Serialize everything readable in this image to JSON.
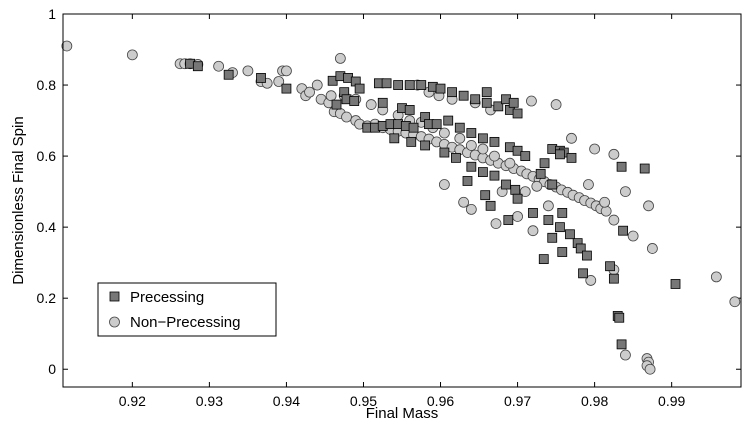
{
  "chart_data": {
    "type": "scatter",
    "title": "",
    "xlabel": "Final Mass",
    "ylabel": "Dimensionless Final Spin",
    "xlim": [
      0.911,
      0.999
    ],
    "ylim": [
      -0.05,
      1.0
    ],
    "xticks": [
      0.92,
      0.93,
      0.94,
      0.95,
      0.96,
      0.97,
      0.98,
      0.99
    ],
    "yticks": [
      0,
      0.2,
      0.4,
      0.6,
      0.8,
      1
    ],
    "xtick_labels": [
      "0.92",
      "0.93",
      "0.94",
      "0.95",
      "0.96",
      "0.97",
      "0.98",
      "0.99"
    ],
    "ytick_labels": [
      "0",
      "0.2",
      "0.4",
      "0.6",
      "0.8",
      "1"
    ],
    "grid": false,
    "legend_position": "lower-left",
    "series": [
      {
        "name": "Precessing",
        "marker": "square",
        "color": "#777777",
        "points": [
          [
            0.9275,
            0.86
          ],
          [
            0.9285,
            0.853
          ],
          [
            0.9325,
            0.829
          ],
          [
            0.9367,
            0.82
          ],
          [
            0.94,
            0.79
          ],
          [
            0.946,
            0.812
          ],
          [
            0.947,
            0.825
          ],
          [
            0.9475,
            0.78
          ],
          [
            0.948,
            0.82
          ],
          [
            0.949,
            0.81
          ],
          [
            0.9495,
            0.79
          ],
          [
            0.9478,
            0.76
          ],
          [
            0.9465,
            0.745
          ],
          [
            0.9488,
            0.755
          ],
          [
            0.9505,
            0.68
          ],
          [
            0.9515,
            0.68
          ],
          [
            0.9525,
            0.685
          ],
          [
            0.9535,
            0.69
          ],
          [
            0.9545,
            0.69
          ],
          [
            0.9555,
            0.685
          ],
          [
            0.9565,
            0.68
          ],
          [
            0.952,
            0.805
          ],
          [
            0.953,
            0.805
          ],
          [
            0.9545,
            0.8
          ],
          [
            0.956,
            0.8
          ],
          [
            0.9575,
            0.8
          ],
          [
            0.959,
            0.795
          ],
          [
            0.96,
            0.79
          ],
          [
            0.9615,
            0.78
          ],
          [
            0.963,
            0.77
          ],
          [
            0.9645,
            0.76
          ],
          [
            0.966,
            0.75
          ],
          [
            0.9675,
            0.74
          ],
          [
            0.969,
            0.73
          ],
          [
            0.97,
            0.72
          ],
          [
            0.9525,
            0.75
          ],
          [
            0.955,
            0.735
          ],
          [
            0.956,
            0.73
          ],
          [
            0.958,
            0.71
          ],
          [
            0.9585,
            0.69
          ],
          [
            0.9595,
            0.69
          ],
          [
            0.961,
            0.7
          ],
          [
            0.9625,
            0.68
          ],
          [
            0.964,
            0.665
          ],
          [
            0.9655,
            0.65
          ],
          [
            0.967,
            0.64
          ],
          [
            0.969,
            0.625
          ],
          [
            0.97,
            0.615
          ],
          [
            0.971,
            0.6
          ],
          [
            0.954,
            0.65
          ],
          [
            0.9562,
            0.64
          ],
          [
            0.958,
            0.63
          ],
          [
            0.9605,
            0.61
          ],
          [
            0.962,
            0.595
          ],
          [
            0.964,
            0.57
          ],
          [
            0.9655,
            0.555
          ],
          [
            0.967,
            0.545
          ],
          [
            0.9685,
            0.52
          ],
          [
            0.9697,
            0.505
          ],
          [
            0.9745,
            0.62
          ],
          [
            0.9755,
            0.615
          ],
          [
            0.976,
            0.61
          ],
          [
            0.977,
            0.595
          ],
          [
            0.9755,
            0.605
          ],
          [
            0.9735,
            0.58
          ],
          [
            0.973,
            0.55
          ],
          [
            0.9745,
            0.52
          ],
          [
            0.97,
            0.48
          ],
          [
            0.972,
            0.44
          ],
          [
            0.974,
            0.42
          ],
          [
            0.9755,
            0.4
          ],
          [
            0.9768,
            0.38
          ],
          [
            0.9778,
            0.355
          ],
          [
            0.9782,
            0.34
          ],
          [
            0.9758,
            0.33
          ],
          [
            0.9734,
            0.31
          ],
          [
            0.979,
            0.32
          ],
          [
            0.9785,
            0.27
          ],
          [
            0.9745,
            0.37
          ],
          [
            0.9758,
            0.44
          ],
          [
            0.9635,
            0.53
          ],
          [
            0.9658,
            0.49
          ],
          [
            0.9665,
            0.46
          ],
          [
            0.9688,
            0.42
          ],
          [
            0.982,
            0.29
          ],
          [
            0.9825,
            0.255
          ],
          [
            0.983,
            0.15
          ],
          [
            0.9832,
            0.145
          ],
          [
            0.9835,
            0.07
          ],
          [
            0.9837,
            0.39
          ],
          [
            0.9835,
            0.57
          ],
          [
            0.9865,
            0.565
          ],
          [
            0.9905,
            0.24
          ],
          [
            0.966,
            0.78
          ],
          [
            0.9685,
            0.76
          ],
          [
            0.9695,
            0.75
          ]
        ]
      },
      {
        "name": "Non−Precessing",
        "marker": "circle",
        "color": "#cccccc",
        "points": [
          [
            0.9115,
            0.91
          ],
          [
            0.92,
            0.885
          ],
          [
            0.9262,
            0.86
          ],
          [
            0.9268,
            0.86
          ],
          [
            0.9275,
            0.86
          ],
          [
            0.9285,
            0.858
          ],
          [
            0.9312,
            0.853
          ],
          [
            0.933,
            0.835
          ],
          [
            0.935,
            0.84
          ],
          [
            0.9367,
            0.81
          ],
          [
            0.9375,
            0.805
          ],
          [
            0.939,
            0.81
          ],
          [
            0.9395,
            0.84
          ],
          [
            0.94,
            0.84
          ],
          [
            0.942,
            0.79
          ],
          [
            0.9425,
            0.77
          ],
          [
            0.943,
            0.78
          ],
          [
            0.947,
            0.875
          ],
          [
            0.9445,
            0.76
          ],
          [
            0.9455,
            0.75
          ],
          [
            0.9462,
            0.725
          ],
          [
            0.947,
            0.72
          ],
          [
            0.9478,
            0.71
          ],
          [
            0.949,
            0.7
          ],
          [
            0.9495,
            0.69
          ],
          [
            0.9505,
            0.685
          ],
          [
            0.9515,
            0.69
          ],
          [
            0.9525,
            0.68
          ],
          [
            0.9535,
            0.675
          ],
          [
            0.9545,
            0.67
          ],
          [
            0.9555,
            0.665
          ],
          [
            0.9565,
            0.66
          ],
          [
            0.9575,
            0.655
          ],
          [
            0.9585,
            0.648
          ],
          [
            0.9595,
            0.64
          ],
          [
            0.9605,
            0.633
          ],
          [
            0.9615,
            0.625
          ],
          [
            0.9625,
            0.618
          ],
          [
            0.9635,
            0.61
          ],
          [
            0.9645,
            0.603
          ],
          [
            0.9655,
            0.595
          ],
          [
            0.9665,
            0.588
          ],
          [
            0.9675,
            0.58
          ],
          [
            0.9685,
            0.573
          ],
          [
            0.9695,
            0.565
          ],
          [
            0.9705,
            0.558
          ],
          [
            0.9712,
            0.55
          ],
          [
            0.972,
            0.543
          ],
          [
            0.9728,
            0.535
          ],
          [
            0.9735,
            0.528
          ],
          [
            0.9742,
            0.52
          ],
          [
            0.975,
            0.513
          ],
          [
            0.9757,
            0.505
          ],
          [
            0.9765,
            0.498
          ],
          [
            0.9772,
            0.49
          ],
          [
            0.978,
            0.483
          ],
          [
            0.9787,
            0.475
          ],
          [
            0.9795,
            0.468
          ],
          [
            0.9802,
            0.46
          ],
          [
            0.9808,
            0.452
          ],
          [
            0.9815,
            0.445
          ],
          [
            0.944,
            0.8
          ],
          [
            0.9458,
            0.77
          ],
          [
            0.9475,
            0.77
          ],
          [
            0.949,
            0.76
          ],
          [
            0.951,
            0.745
          ],
          [
            0.9525,
            0.73
          ],
          [
            0.9545,
            0.715
          ],
          [
            0.956,
            0.7
          ],
          [
            0.9575,
            0.695
          ],
          [
            0.959,
            0.68
          ],
          [
            0.9605,
            0.665
          ],
          [
            0.9625,
            0.65
          ],
          [
            0.964,
            0.63
          ],
          [
            0.9655,
            0.62
          ],
          [
            0.967,
            0.6
          ],
          [
            0.969,
            0.58
          ],
          [
            0.957,
            0.8
          ],
          [
            0.9585,
            0.78
          ],
          [
            0.9598,
            0.77
          ],
          [
            0.9615,
            0.76
          ],
          [
            0.9645,
            0.75
          ],
          [
            0.9665,
            0.73
          ],
          [
            0.9718,
            0.755
          ],
          [
            0.975,
            0.745
          ],
          [
            0.977,
            0.65
          ],
          [
            0.98,
            0.62
          ],
          [
            0.9825,
            0.605
          ],
          [
            0.9792,
            0.52
          ],
          [
            0.9813,
            0.47
          ],
          [
            0.9825,
            0.42
          ],
          [
            0.984,
            0.5
          ],
          [
            0.987,
            0.46
          ],
          [
            0.985,
            0.375
          ],
          [
            0.9875,
            0.34
          ],
          [
            0.9795,
            0.25
          ],
          [
            0.9825,
            0.28
          ],
          [
            0.984,
            0.04
          ],
          [
            0.9868,
            0.03
          ],
          [
            0.987,
            0.02
          ],
          [
            0.9868,
            0.01
          ],
          [
            0.9872,
            0.0
          ],
          [
            0.9958,
            0.26
          ],
          [
            0.9982,
            0.19
          ],
          [
            0.9605,
            0.52
          ],
          [
            0.963,
            0.47
          ],
          [
            0.964,
            0.45
          ],
          [
            0.9672,
            0.41
          ],
          [
            0.97,
            0.43
          ],
          [
            0.972,
            0.39
          ],
          [
            0.968,
            0.5
          ],
          [
            0.974,
            0.46
          ],
          [
            0.971,
            0.5
          ],
          [
            0.9725,
            0.515
          ]
        ]
      }
    ]
  }
}
